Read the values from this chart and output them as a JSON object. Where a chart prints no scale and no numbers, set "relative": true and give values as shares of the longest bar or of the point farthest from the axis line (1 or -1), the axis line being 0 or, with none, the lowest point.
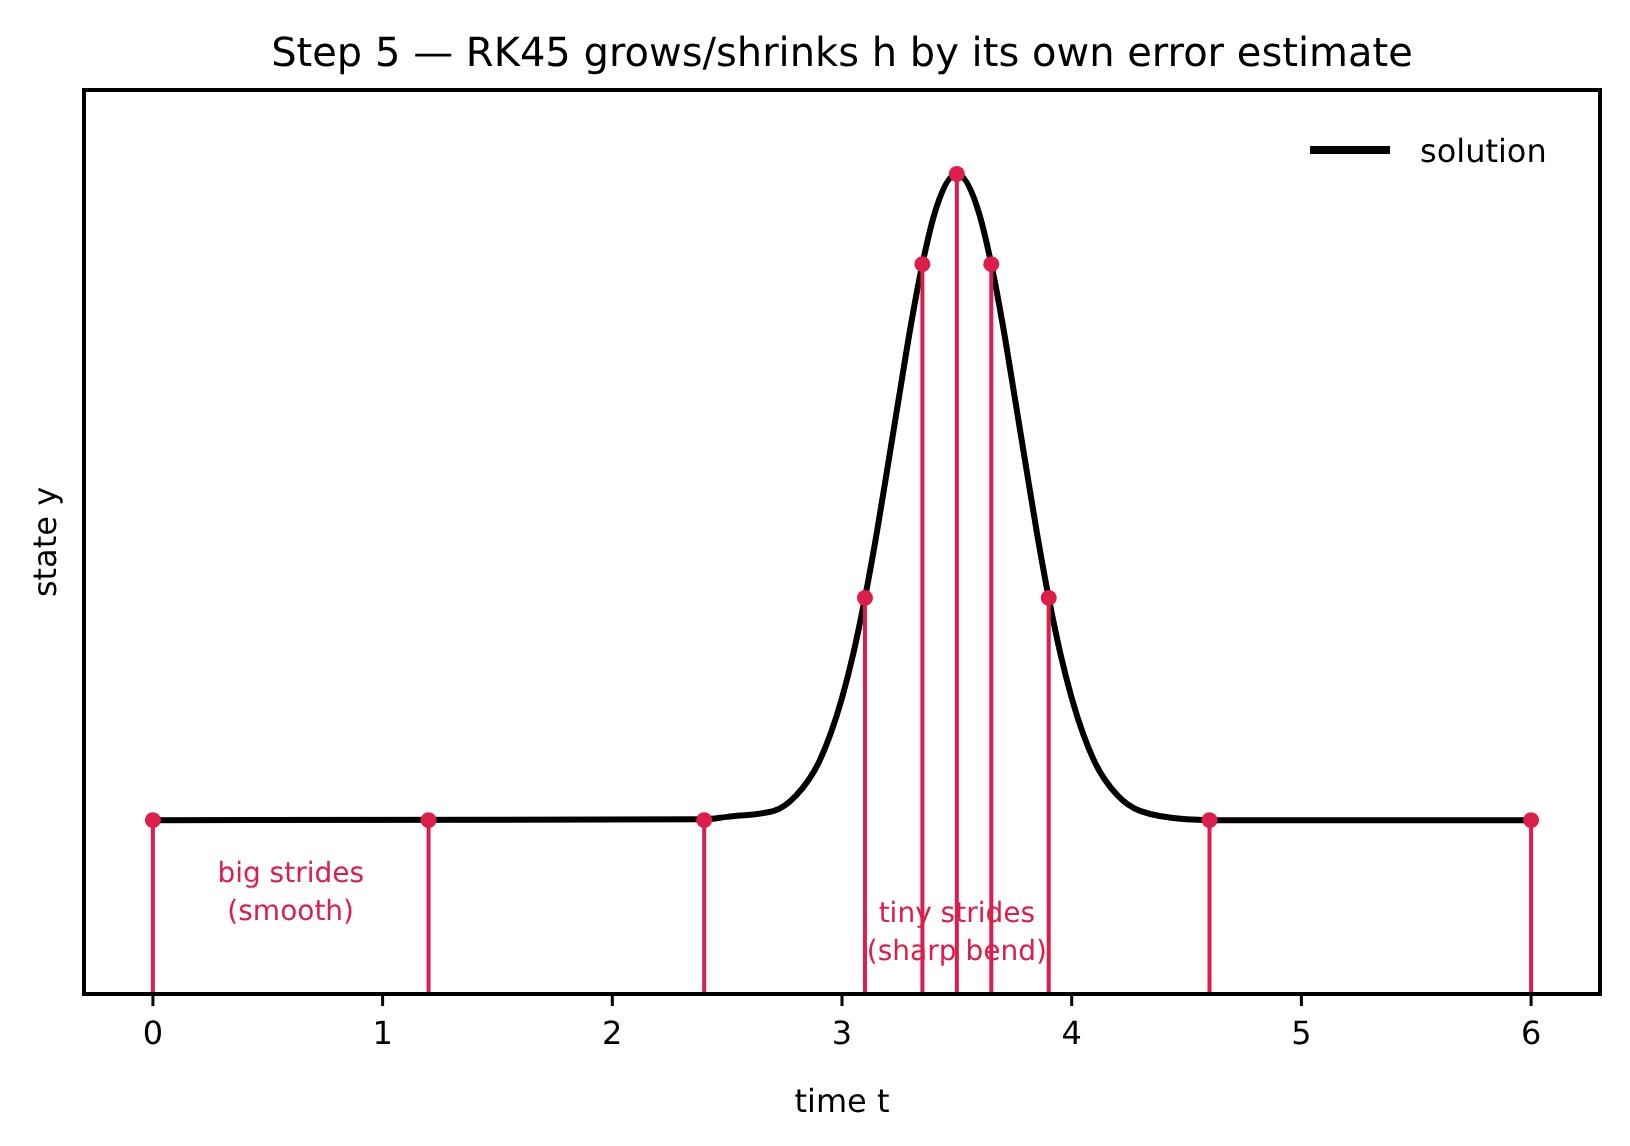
{
  "chart_data": {
    "type": "line",
    "title": "Step 5 — RK45 grows/shrinks h by its own error estimate",
    "xlabel": "time  t",
    "ylabel": "state  y",
    "relative": true,
    "xlim": [
      -0.3,
      6.3
    ],
    "xticks": [
      0,
      1,
      2,
      3,
      4,
      5,
      6
    ],
    "grid": false,
    "legend": "top right",
    "series": [
      {
        "name": "solution",
        "color": "#000000",
        "marker": "none",
        "x": [
          0,
          2.4,
          2.5,
          2.7,
          2.8,
          2.9,
          2.95,
          3.0,
          3.05,
          3.1,
          3.15,
          3.2,
          3.25,
          3.3,
          3.35,
          3.4,
          3.5,
          3.6,
          3.65,
          3.7,
          3.75,
          3.8,
          3.85,
          3.9,
          3.95,
          4.0,
          4.05,
          4.1,
          4.2,
          4.3,
          4.5,
          4.6,
          6
        ],
        "values": [
          0.212,
          0.213,
          0.216,
          0.223,
          0.242,
          0.283,
          0.317,
          0.361,
          0.416,
          0.483,
          0.56,
          0.645,
          0.731,
          0.816,
          0.89,
          0.949,
          1,
          0.949,
          0.89,
          0.816,
          0.731,
          0.645,
          0.56,
          0.483,
          0.416,
          0.361,
          0.317,
          0.283,
          0.242,
          0.223,
          0.213,
          0.212,
          0.212
        ]
      },
      {
        "type": "lollipop",
        "color": "#dc1e4b",
        "marker": "circle",
        "x": [
          0,
          1.2,
          2.4,
          3.1,
          3.35,
          3.5,
          3.65,
          3.9,
          4.6,
          6
        ],
        "values": [
          0.212,
          0.212,
          0.212,
          0.483,
          0.89,
          1,
          0.89,
          0.483,
          0.212,
          0.212
        ]
      }
    ],
    "annotations": [
      "big strides\n(smooth)",
      "tiny strides\n(sharp bend)"
    ]
  }
}
